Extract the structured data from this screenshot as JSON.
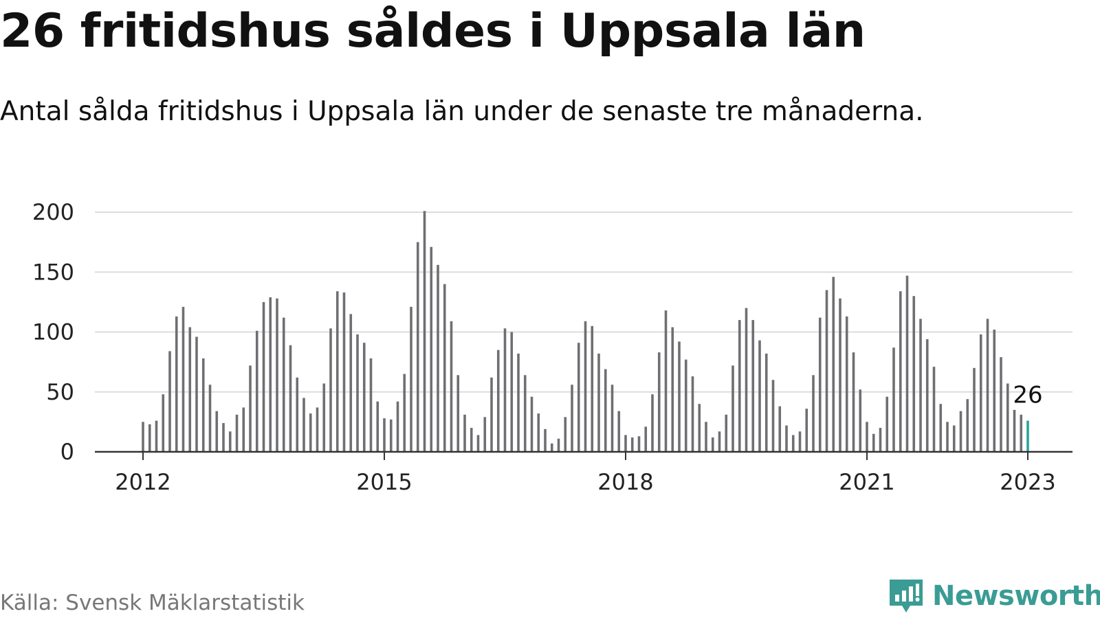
{
  "header": {
    "title": "26 fritidshus såldes i Uppsala län",
    "subtitle": "Antal sålda fritidshus i Uppsala län under de senaste tre månaderna."
  },
  "footer": {
    "source": "Källa: Svensk Mäklarstatistik",
    "brand": "Newsworthy",
    "brand_icon": "newsworthy-logo-icon"
  },
  "colors": {
    "bar": "#6f6f73",
    "highlight": "#2aa39a",
    "grid": "#dcdcdc",
    "axis": "#333333",
    "brand": "#3a9c94"
  },
  "chart_data": {
    "type": "bar",
    "x_start": "2012-01",
    "x_unit": "month",
    "ylim": [
      0,
      200
    ],
    "yticks": [
      0,
      50,
      100,
      150,
      200
    ],
    "xticks": [
      "2012",
      "2015",
      "2018",
      "2021",
      "2023"
    ],
    "grid": true,
    "highlight_last": true,
    "annotation": "26",
    "values": [
      25,
      23,
      26,
      48,
      84,
      113,
      121,
      104,
      96,
      78,
      56,
      34,
      24,
      17,
      31,
      37,
      72,
      101,
      125,
      129,
      128,
      112,
      89,
      62,
      45,
      32,
      37,
      57,
      103,
      134,
      133,
      115,
      98,
      91,
      78,
      42,
      28,
      27,
      42,
      65,
      121,
      175,
      201,
      171,
      156,
      140,
      109,
      64,
      31,
      20,
      14,
      29,
      62,
      85,
      103,
      100,
      82,
      64,
      46,
      32,
      19,
      7,
      11,
      29,
      56,
      91,
      109,
      105,
      82,
      69,
      56,
      34,
      14,
      12,
      13,
      21,
      48,
      83,
      118,
      104,
      92,
      77,
      63,
      40,
      25,
      12,
      17,
      31,
      72,
      110,
      120,
      110,
      93,
      82,
      60,
      38,
      22,
      14,
      17,
      36,
      64,
      112,
      135,
      146,
      128,
      113,
      83,
      52,
      25,
      15,
      20,
      46,
      87,
      134,
      147,
      130,
      111,
      94,
      71,
      40,
      25,
      22,
      34,
      44,
      70,
      98,
      111,
      102,
      79,
      57,
      35,
      31,
      26
    ]
  }
}
